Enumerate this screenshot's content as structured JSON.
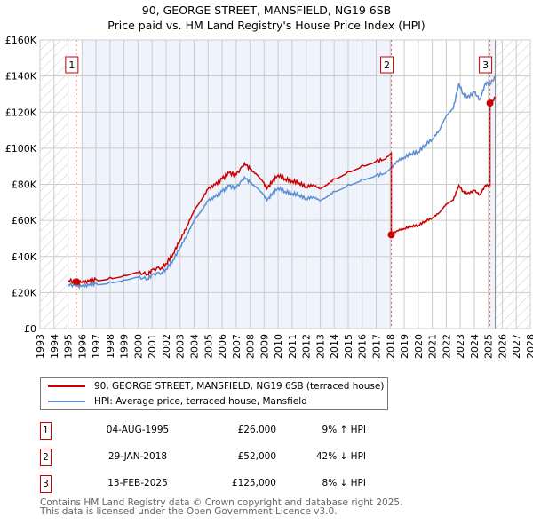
{
  "chart_data": {
    "type": "line",
    "title": "90, GEORGE STREET, MANSFIELD, NG19 6SB",
    "subtitle": "Price paid vs. HM Land Registry's House Price Index (HPI)",
    "xlim": [
      1993,
      2028
    ],
    "ylim": [
      0,
      160000
    ],
    "x_ticks": [
      "1993",
      "1994",
      "1995",
      "1996",
      "1997",
      "1998",
      "1999",
      "2000",
      "2001",
      "2002",
      "2003",
      "2004",
      "2005",
      "2006",
      "2007",
      "2008",
      "2009",
      "2010",
      "2011",
      "2012",
      "2013",
      "2014",
      "2015",
      "2016",
      "2017",
      "2018",
      "2019",
      "2020",
      "2021",
      "2022",
      "2023",
      "2024",
      "2025",
      "2026",
      "2027",
      "2028"
    ],
    "y_ticks": [
      {
        "v": 0,
        "label": "£0"
      },
      {
        "v": 20000,
        "label": "£20K"
      },
      {
        "v": 40000,
        "label": "£40K"
      },
      {
        "v": 60000,
        "label": "£60K"
      },
      {
        "v": 80000,
        "label": "£80K"
      },
      {
        "v": 100000,
        "label": "£100K"
      },
      {
        "v": 120000,
        "label": "£120K"
      },
      {
        "v": 140000,
        "label": "£140K"
      },
      {
        "v": 160000,
        "label": "£160K"
      }
    ],
    "grid": true,
    "series": [
      {
        "name": "90, GEORGE STREET, MANSFIELD, NG19 6SB (terraced house)",
        "color": "#cc0000"
      },
      {
        "name": "HPI: Average price, terraced house, Mansfield",
        "color": "#5b8fd4",
        "x": [
          1995.0,
          1995.6,
          1996,
          1996.5,
          1997,
          1998,
          1999,
          2000,
          2000.7,
          2001,
          2001.7,
          2002,
          2002.5,
          2003,
          2003.5,
          2004,
          2004.5,
          2005,
          2005.5,
          2006,
          2006.5,
          2007,
          2007.6,
          2008,
          2008.5,
          2009,
          2009.2,
          2009.6,
          2010,
          2010.5,
          2011,
          2011.5,
          2012,
          2012.5,
          2013,
          2013.5,
          2014,
          2015,
          2016,
          2017,
          2017.6,
          2018.08,
          2018.5,
          2019,
          2019.5,
          2020,
          2020.5,
          2021,
          2021.5,
          2022,
          2022.5,
          2022.9,
          2023.2,
          2023.5,
          2024,
          2024.4,
          2024.8,
          2025.12,
          2025.5
        ],
        "y": [
          24500,
          23800,
          23500,
          24000,
          25000,
          26000,
          27000,
          28500,
          27500,
          30000,
          31000,
          33000,
          38000,
          45000,
          52000,
          60000,
          65000,
          71000,
          73000,
          76000,
          79000,
          78000,
          84000,
          81000,
          78000,
          74000,
          71000,
          75000,
          78000,
          76000,
          75000,
          74000,
          72000,
          73000,
          71000,
          73000,
          76000,
          80000,
          83000,
          85000,
          86000,
          89000,
          93000,
          95000,
          97000,
          98000,
          102000,
          105000,
          110000,
          118000,
          122000,
          136000,
          130000,
          128000,
          131000,
          127000,
          136000,
          136000,
          139000
        ]
      }
    ],
    "sales": [
      {
        "n": "1",
        "x": 1995.59,
        "date": "04-AUG-1995",
        "price": 26000,
        "price_label": "£26,000",
        "hpi": "9% ↑ HPI"
      },
      {
        "n": "2",
        "x": 2018.08,
        "date": "29-JAN-2018",
        "price": 52000,
        "price_label": "£52,000",
        "hpi": "42% ↓ HPI"
      },
      {
        "n": "3",
        "x": 2025.12,
        "date": "13-FEB-2025",
        "price": 125000,
        "price_label": "£125,000",
        "hpi": "8% ↓ HPI"
      }
    ]
  },
  "footer": {
    "line1": "Contains HM Land Registry data © Crown copyright and database right 2025.",
    "line2": "This data is licensed under the Open Government Licence v3.0."
  }
}
